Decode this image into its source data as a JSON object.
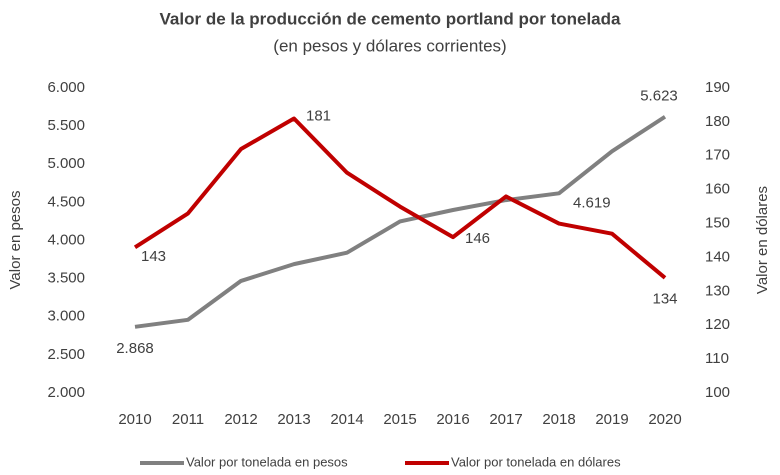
{
  "chart_data": {
    "type": "line",
    "title": "Valor de la producción de cemento portland por tonelada",
    "subtitle": "(en pesos y dólares corrientes)",
    "y_label": "Valor en pesos",
    "y2_label": "Valor en dólares",
    "categories": [
      "2010",
      "2011",
      "2012",
      "2013",
      "2014",
      "2015",
      "2016",
      "2017",
      "2018",
      "2019",
      "2020"
    ],
    "series": [
      {
        "name": "Valor por tonelada en pesos",
        "color": "#808080",
        "values": [
          2868,
          2960,
          3470,
          3690,
          3840,
          4250,
          4400,
          4530,
          4619,
          5170,
          5623
        ],
        "value_labels": [
          "2.868",
          null,
          null,
          null,
          null,
          null,
          null,
          null,
          "4.619",
          null,
          "5.623"
        ]
      },
      {
        "name": "Valor por tonelada en dólares",
        "color": "#c00000",
        "axis": "y2",
        "values": [
          143,
          153,
          172,
          181,
          165,
          155,
          146,
          158,
          150,
          147,
          134
        ],
        "value_labels": [
          "143",
          null,
          null,
          "181",
          null,
          null,
          "146",
          null,
          null,
          null,
          "134"
        ]
      }
    ],
    "ylim": [
      2000,
      6000
    ],
    "yticks": [
      {
        "value": 2000,
        "label": "2.000"
      },
      {
        "value": 2500,
        "label": "2.500"
      },
      {
        "value": 3000,
        "label": "3.000"
      },
      {
        "value": 3500,
        "label": "3.500"
      },
      {
        "value": 4000,
        "label": "4.000"
      },
      {
        "value": 4500,
        "label": "4.500"
      },
      {
        "value": 5000,
        "label": "5.000"
      },
      {
        "value": 5500,
        "label": "5.500"
      },
      {
        "value": 6000,
        "label": "6.000"
      }
    ],
    "y2lim": [
      100,
      190
    ],
    "y2ticks": [
      100,
      110,
      120,
      130,
      140,
      150,
      160,
      170,
      180,
      190
    ],
    "legend": "bottom",
    "grid": false
  }
}
